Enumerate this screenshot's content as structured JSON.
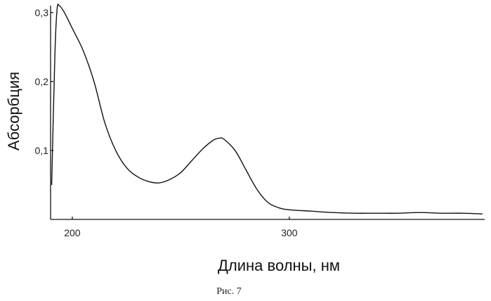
{
  "chart_data": {
    "type": "line",
    "title": "",
    "xlabel": "Длина волны, нм",
    "ylabel": "Абсорбция",
    "caption": "Рис. 7",
    "xlim": [
      190,
      390
    ],
    "ylim": [
      0,
      0.31
    ],
    "x_ticks": [
      {
        "value": 200,
        "label": "200"
      },
      {
        "value": 300,
        "label": "300"
      }
    ],
    "y_ticks": [
      {
        "value": 0.1,
        "label": "0,1"
      },
      {
        "value": 0.2,
        "label": "0,2"
      },
      {
        "value": 0.3,
        "label": "0,3"
      }
    ],
    "grid": false,
    "series": [
      {
        "x": [
          190.5,
          192,
          193,
          194,
          196,
          198,
          200,
          205,
          210,
          215,
          220,
          225,
          230,
          235,
          240,
          245,
          250,
          255,
          260,
          265,
          268,
          270,
          275,
          280,
          285,
          290,
          295,
          300,
          310,
          320,
          330,
          340,
          350,
          360,
          370,
          380,
          389
        ],
        "y": [
          0.05,
          0.24,
          0.305,
          0.31,
          0.302,
          0.29,
          0.277,
          0.245,
          0.2,
          0.14,
          0.1,
          0.075,
          0.062,
          0.055,
          0.053,
          0.058,
          0.068,
          0.085,
          0.102,
          0.115,
          0.118,
          0.116,
          0.1,
          0.072,
          0.044,
          0.025,
          0.017,
          0.014,
          0.012,
          0.01,
          0.009,
          0.009,
          0.009,
          0.01,
          0.009,
          0.009,
          0.008
        ]
      }
    ]
  }
}
